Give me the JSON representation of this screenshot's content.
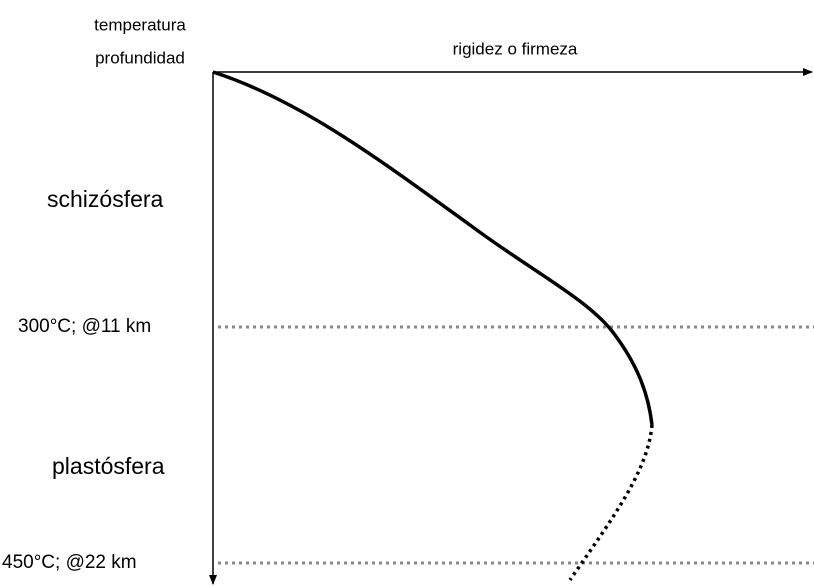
{
  "axes": {
    "y_label": [
      "temperatura",
      "profundidad"
    ],
    "x_label": "rigidez o firmeza"
  },
  "zones": [
    "schizósfera",
    "plastósfera"
  ],
  "levels": [
    "300°C; @11 km",
    "450°C; @22 km"
  ]
}
